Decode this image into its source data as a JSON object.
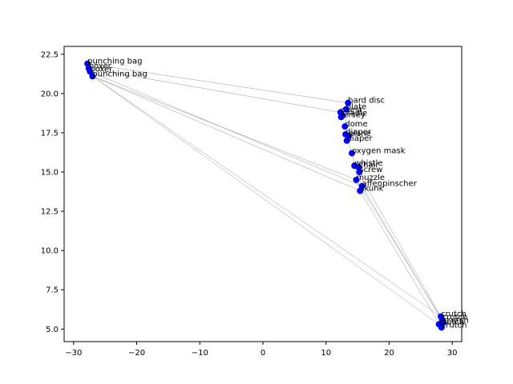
{
  "chart_data": {
    "type": "scatter",
    "title": "",
    "xlabel": "",
    "ylabel": "",
    "xlim": [
      -31.5,
      31.5
    ],
    "ylim": [
      4.2,
      23.0
    ],
    "xticks": [
      -30,
      -20,
      -10,
      0,
      10,
      20,
      30
    ],
    "yticks": [
      5.0,
      7.5,
      10.0,
      12.5,
      15.0,
      17.5,
      20.0,
      22.5
    ],
    "xtick_labels": [
      "−30",
      "−20",
      "−10",
      "0",
      "10",
      "20",
      "30"
    ],
    "ytick_labels": [
      "5.0",
      "7.5",
      "10.0",
      "12.5",
      "15.0",
      "17.5",
      "20.0",
      "22.5"
    ],
    "grid": false,
    "marker_color": "#0000ff",
    "line_color": "#808080",
    "points": [
      {
        "label": "punching bag",
        "x": -27.8,
        "y": 21.9
      },
      {
        "label": "boxer",
        "x": -27.6,
        "y": 21.6
      },
      {
        "label": "boxer",
        "x": -27.4,
        "y": 21.4
      },
      {
        "label": "punching bag",
        "x": -27.0,
        "y": 21.1
      },
      {
        "label": "hard disc",
        "x": 13.5,
        "y": 19.4
      },
      {
        "label": "plate",
        "x": 13.2,
        "y": 19.0
      },
      {
        "label": "chest",
        "x": 12.3,
        "y": 18.8
      },
      {
        "label": "cradle",
        "x": 12.6,
        "y": 18.6
      },
      {
        "label": "jersey",
        "x": 12.4,
        "y": 18.5
      },
      {
        "label": "dome",
        "x": 13.0,
        "y": 17.9
      },
      {
        "label": "diaper",
        "x": 13.1,
        "y": 17.4
      },
      {
        "label": "plane",
        "x": 13.6,
        "y": 17.3
      },
      {
        "label": "diaper",
        "x": 13.3,
        "y": 17.0
      },
      {
        "label": "oxygen mask",
        "x": 14.1,
        "y": 16.2
      },
      {
        "label": "whistle",
        "x": 14.5,
        "y": 15.4
      },
      {
        "label": "chair",
        "x": 15.2,
        "y": 15.3
      },
      {
        "label": "screw",
        "x": 15.3,
        "y": 15.0
      },
      {
        "label": "muzzle",
        "x": 14.8,
        "y": 14.5
      },
      {
        "label": "affenpinscher",
        "x": 15.7,
        "y": 14.1
      },
      {
        "label": "skunk",
        "x": 15.4,
        "y": 13.8
      },
      {
        "label": "crutch",
        "x": 28.2,
        "y": 5.8
      },
      {
        "label": "crutch",
        "x": 28.4,
        "y": 5.6
      },
      {
        "label": "crutch",
        "x": 28.6,
        "y": 5.4
      },
      {
        "label": "crutch",
        "x": 27.9,
        "y": 5.3
      },
      {
        "label": "crutch",
        "x": 28.3,
        "y": 5.1
      }
    ],
    "connections": [
      [
        0,
        4
      ],
      [
        1,
        6
      ],
      [
        2,
        18
      ],
      [
        3,
        17
      ],
      [
        3,
        19
      ],
      [
        3,
        20
      ],
      [
        3,
        23
      ],
      [
        4,
        9
      ],
      [
        10,
        13
      ],
      [
        13,
        19
      ],
      [
        14,
        20
      ],
      [
        17,
        21
      ],
      [
        18,
        22
      ],
      [
        19,
        24
      ]
    ]
  }
}
